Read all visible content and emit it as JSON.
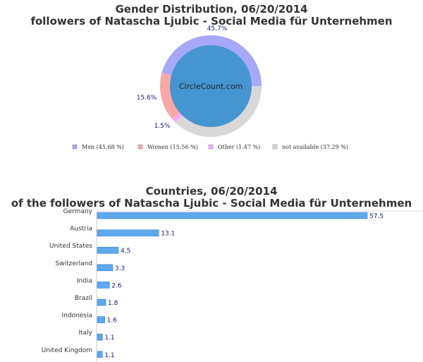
{
  "chart_data": [
    {
      "type": "pie",
      "title": "Gender Distribution, 06/20/2014",
      "subtitle": "followers of Natascha Ljubic - Social Media für Unternehmen",
      "center_label": "CircleCount.com",
      "slices": [
        {
          "name": "Men",
          "value": 45.68,
          "label": "45.7%",
          "legend": "Men (45.68 %)",
          "color": "#a8a8f8"
        },
        {
          "name": "Women",
          "value": 15.56,
          "label": "15.6%",
          "legend": "Women (15.56 %)",
          "color": "#f8a8a8"
        },
        {
          "name": "Other",
          "value": 1.47,
          "label": "1.5%",
          "legend": "Other (1.47 %)",
          "color": "#f8a8f8"
        },
        {
          "name": "not available",
          "value": 37.29,
          "label": "",
          "legend": "not available (37.29 %)",
          "color": "#d8d8d8"
        }
      ],
      "legend_position": "bottom",
      "center_color": "#4596d0"
    },
    {
      "type": "bar",
      "orientation": "horizontal",
      "title": "Countries, 06/20/2014",
      "subtitle": "of the followers of Natascha Ljubic - Social Media für Unternehmen",
      "categories": [
        "Germany",
        "Austria",
        "United States",
        "Switzerland",
        "India",
        "Brazil",
        "Indonesia",
        "Italy",
        "United Kingdom"
      ],
      "values": [
        57.5,
        13.1,
        4.5,
        3.3,
        2.6,
        1.8,
        1.6,
        1.1,
        1.1
      ],
      "value_labels": [
        "57.5",
        "13.1",
        "4.5",
        "3.3",
        "2.6",
        "1.8",
        "1.6",
        "1.1",
        "1.1"
      ],
      "xlim": [
        0,
        60
      ],
      "color": "#5ea8ee"
    }
  ]
}
